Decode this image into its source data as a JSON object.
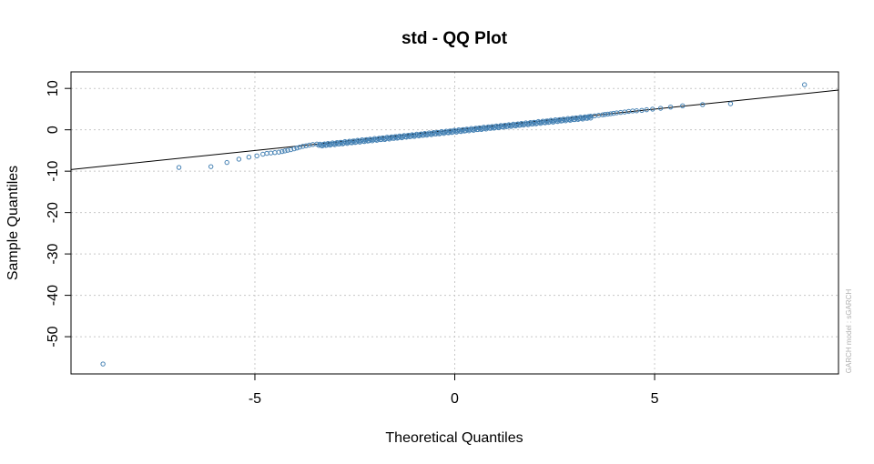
{
  "chart_data": {
    "type": "scatter",
    "title": "std - QQ Plot",
    "xlabel": "Theoretical Quantiles",
    "ylabel": "Sample Quantiles",
    "side_note": "GARCH model : sGARCH",
    "xlim": [
      -9.6,
      9.6
    ],
    "ylim": [
      -59,
      14
    ],
    "x_ticks": [
      -5,
      0,
      5
    ],
    "y_ticks": [
      10,
      0,
      -10,
      -20,
      -30,
      -40,
      -50
    ],
    "grid": true,
    "grid_x": [
      -5,
      0,
      5
    ],
    "grid_y": [
      10,
      0,
      -10,
      -20,
      -30,
      -40,
      -50
    ],
    "reference_line": {
      "x1": -9.6,
      "y1": -9.6,
      "x2": 9.6,
      "y2": 9.6
    },
    "point_color": "#4682B4",
    "line_color": "#000000",
    "grid_color": "#c8c8c8",
    "points": [
      [
        -8.8,
        -56.6
      ],
      [
        -6.9,
        -9.1
      ],
      [
        -6.1,
        -8.9
      ],
      [
        -5.7,
        -7.9
      ],
      [
        -5.4,
        -7.1
      ],
      [
        -5.15,
        -6.6
      ],
      [
        -4.95,
        -6.3
      ],
      [
        -4.8,
        -5.9
      ],
      [
        -4.7,
        -5.7
      ],
      [
        -4.6,
        -5.6
      ],
      [
        -4.5,
        -5.5
      ],
      [
        -4.4,
        -5.4
      ],
      [
        -4.32,
        -5.25
      ],
      [
        -4.25,
        -5.1
      ],
      [
        -4.18,
        -4.95
      ],
      [
        -4.1,
        -4.8
      ],
      [
        -4.02,
        -4.6
      ],
      [
        -3.95,
        -4.4
      ],
      [
        -3.88,
        -4.2
      ],
      [
        -3.8,
        -4.0
      ],
      [
        -3.72,
        -3.85
      ],
      [
        -3.64,
        -3.7
      ],
      [
        -3.55,
        -3.55
      ],
      [
        -3.45,
        -3.45
      ],
      [
        6.9,
        6.3
      ],
      [
        6.2,
        6.1
      ],
      [
        5.7,
        5.8
      ],
      [
        5.4,
        5.5
      ],
      [
        5.15,
        5.2
      ],
      [
        4.95,
        5.0
      ],
      [
        4.8,
        4.85
      ],
      [
        4.68,
        4.7
      ],
      [
        4.55,
        4.6
      ],
      [
        4.45,
        4.55
      ],
      [
        4.35,
        4.45
      ],
      [
        4.25,
        4.3
      ],
      [
        4.15,
        4.2
      ],
      [
        4.05,
        4.1
      ],
      [
        3.97,
        3.98
      ],
      [
        3.9,
        3.88
      ],
      [
        3.83,
        3.8
      ],
      [
        3.76,
        3.72
      ],
      [
        3.7,
        3.62
      ],
      [
        3.6,
        3.5
      ],
      [
        3.5,
        3.38
      ],
      [
        3.4,
        3.28
      ],
      [
        8.75,
        10.9
      ]
    ],
    "dense_segments": [
      {
        "x_from": -3.4,
        "x_to": 3.4,
        "count": 240,
        "offset": -0.35,
        "jitter": 0.25
      }
    ]
  }
}
